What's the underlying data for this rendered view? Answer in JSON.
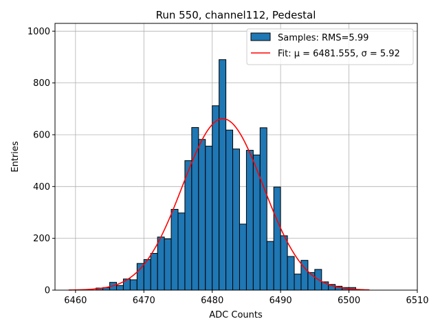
{
  "chart_data": {
    "type": "bar",
    "title": "Run 550, channel112, Pedestal",
    "xlabel": "ADC Counts",
    "ylabel": "Entries",
    "xlim": [
      6457,
      6510
    ],
    "ylim": [
      0,
      1030
    ],
    "grid": true,
    "legend_position": "top-right",
    "bar_color": "#1f77b4",
    "fit_color": "#ff0000",
    "xticks": [
      6460,
      6470,
      6480,
      6490,
      6500,
      6510
    ],
    "yticks": [
      0,
      200,
      400,
      600,
      800,
      1000
    ],
    "bin_width": 1,
    "bins": [
      {
        "x": 6463,
        "value": 8
      },
      {
        "x": 6464,
        "value": 10
      },
      {
        "x": 6465,
        "value": 30
      },
      {
        "x": 6466,
        "value": 18
      },
      {
        "x": 6467,
        "value": 43
      },
      {
        "x": 6468,
        "value": 40
      },
      {
        "x": 6469,
        "value": 103
      },
      {
        "x": 6470,
        "value": 118
      },
      {
        "x": 6471,
        "value": 142
      },
      {
        "x": 6472,
        "value": 205
      },
      {
        "x": 6473,
        "value": 198
      },
      {
        "x": 6474,
        "value": 312
      },
      {
        "x": 6475,
        "value": 298
      },
      {
        "x": 6476,
        "value": 500
      },
      {
        "x": 6477,
        "value": 628
      },
      {
        "x": 6478,
        "value": 582
      },
      {
        "x": 6479,
        "value": 556
      },
      {
        "x": 6480,
        "value": 712
      },
      {
        "x": 6481,
        "value": 890
      },
      {
        "x": 6482,
        "value": 618
      },
      {
        "x": 6483,
        "value": 545
      },
      {
        "x": 6484,
        "value": 255
      },
      {
        "x": 6485,
        "value": 540
      },
      {
        "x": 6486,
        "value": 522
      },
      {
        "x": 6487,
        "value": 627
      },
      {
        "x": 6488,
        "value": 188
      },
      {
        "x": 6489,
        "value": 398
      },
      {
        "x": 6490,
        "value": 210
      },
      {
        "x": 6491,
        "value": 130
      },
      {
        "x": 6492,
        "value": 62
      },
      {
        "x": 6493,
        "value": 115
      },
      {
        "x": 6494,
        "value": 68
      },
      {
        "x": 6495,
        "value": 80
      },
      {
        "x": 6496,
        "value": 32
      },
      {
        "x": 6497,
        "value": 22
      },
      {
        "x": 6498,
        "value": 15
      },
      {
        "x": 6499,
        "value": 10
      },
      {
        "x": 6500,
        "value": 10
      },
      {
        "x": 6501,
        "value": 2
      }
    ],
    "fit": {
      "mu": 6481.555,
      "sigma": 5.92,
      "amplitude": 662,
      "x_range": [
        6459,
        6503
      ]
    },
    "legend": {
      "samples_label": "Samples: RMS=5.99",
      "fit_label": "Fit: μ = 6481.555, σ = 5.92"
    }
  }
}
